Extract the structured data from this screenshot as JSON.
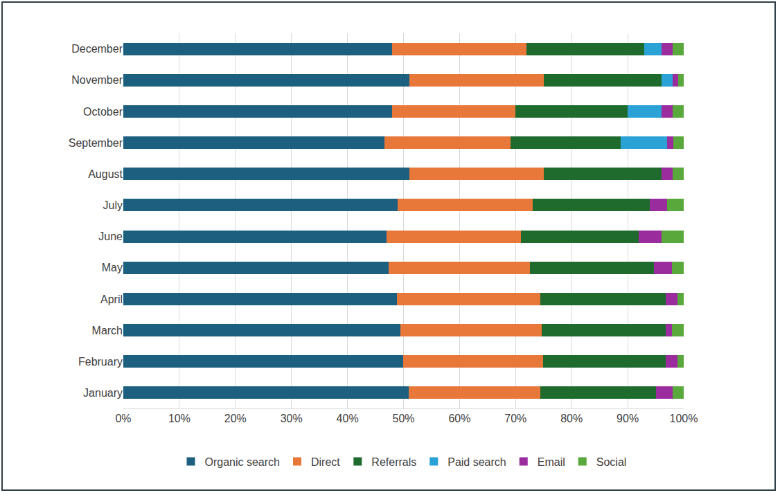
{
  "chart_data": {
    "type": "bar",
    "orientation": "horizontal",
    "stacked": true,
    "grid": true,
    "legend": "bottom",
    "categories": [
      "January",
      "February",
      "March",
      "April",
      "May",
      "June",
      "July",
      "August",
      "September",
      "October",
      "November",
      "December"
    ],
    "series": [
      {
        "name": "Organic search",
        "color": "#1c5f7f",
        "values": [
          50.9,
          49.9,
          49.4,
          48.8,
          47.4,
          47,
          49,
          51,
          46.6,
          48,
          51,
          48
        ]
      },
      {
        "name": "Direct",
        "color": "#e8783a",
        "values": [
          23.5,
          25,
          25.3,
          25.6,
          25.2,
          24,
          24,
          24,
          22.5,
          22,
          24,
          24
        ]
      },
      {
        "name": "Referrals",
        "color": "#1e6b2d",
        "values": [
          20.6,
          21.9,
          22.1,
          22.4,
          22.1,
          21,
          21,
          21,
          19.7,
          20,
          21,
          21
        ]
      },
      {
        "name": "Paid search",
        "color": "#2aa2d6",
        "values": [
          0,
          0,
          0,
          0,
          0,
          0,
          0,
          0,
          8.2,
          6,
          2,
          3
        ]
      },
      {
        "name": "Email",
        "color": "#9a2c9e",
        "values": [
          3,
          2.1,
          1.1,
          2.1,
          3.2,
          4,
          3,
          2,
          1.1,
          2,
          1,
          2
        ]
      },
      {
        "name": "Social",
        "color": "#59a83c",
        "values": [
          2,
          1.1,
          2.1,
          1.1,
          2.1,
          4,
          3,
          2,
          1.9,
          2,
          1,
          2
        ]
      }
    ],
    "xlim": [
      0,
      100
    ],
    "xticks": [
      {
        "value": 0,
        "label": "0%"
      },
      {
        "value": 10,
        "label": "10%"
      },
      {
        "value": 20,
        "label": "20%"
      },
      {
        "value": 30,
        "label": "30%"
      },
      {
        "value": 40,
        "label": "40%"
      },
      {
        "value": 50,
        "label": "50%"
      },
      {
        "value": 60,
        "label": "60%"
      },
      {
        "value": 70,
        "label": "70%"
      },
      {
        "value": 80,
        "label": "80%"
      },
      {
        "value": 90,
        "label": "90%"
      },
      {
        "value": 100,
        "label": "100%"
      }
    ]
  }
}
